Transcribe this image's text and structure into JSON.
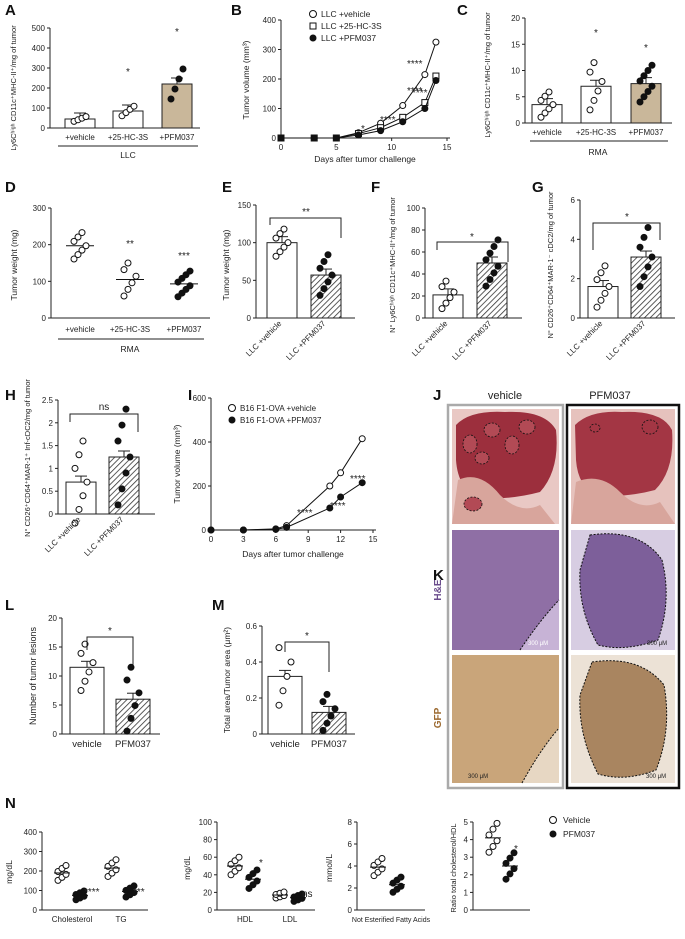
{
  "panels": {
    "A": {
      "letter": "A",
      "ylabel": "Ly6Cʰⁱᵍʰ CD11c⁺MHC-II⁺/mg of tumor",
      "group": "LLC",
      "categories": [
        "+vehicle",
        "+25-HC-3S",
        "+PFM037"
      ],
      "means": [
        45,
        85,
        220
      ],
      "stars": [
        "",
        "*",
        "*"
      ]
    },
    "B": {
      "letter": "B",
      "ylabel": "Tumor volume (mm³)",
      "xlabel": "Days after tumor challenge",
      "legend": [
        "LLC +vehicle",
        "LLC +25-HC-3S",
        "LLC +PFM037"
      ],
      "stars": [
        "****",
        "****",
        "****",
        "****",
        "*"
      ]
    },
    "C": {
      "letter": "C",
      "ylabel": "Ly6Cʰⁱᵍʰ CD11c⁺MHC-II⁺/mg of tumor",
      "group": "RMA",
      "categories": [
        "+vehicle",
        "+25-HC-3S",
        "+PFM037"
      ],
      "stars": [
        "",
        "*",
        "*"
      ]
    },
    "D": {
      "letter": "D",
      "ylabel": "Tumor weight (mg)",
      "group": "RMA",
      "categories": [
        "+vehicle",
        "+25-HC-3S",
        "+PFM037"
      ],
      "stars": [
        "",
        "**",
        "***"
      ]
    },
    "E": {
      "letter": "E",
      "ylabel": "Tumor weight (mg)",
      "categories": [
        "LLC +vehicle",
        "LLC +PFM037"
      ],
      "star": "**"
    },
    "F": {
      "letter": "F",
      "ylabel": "N° Ly6Cʰⁱᵍʰ CD11c⁺MHC-II⁺/mg of tumor",
      "categories": [
        "LLC +vehicle",
        "LLC +PFM037"
      ],
      "star": "*"
    },
    "G": {
      "letter": "G",
      "ylabel": "N° CD26⁺CD64⁺MAR-1⁻ cDC2/mg of tumor",
      "categories": [
        "LLC +vehicle",
        "LLC +PFM037"
      ],
      "star": "*"
    },
    "H": {
      "letter": "H",
      "ylabel": "N° CD26⁺CD64⁺MAR-1⁺ Inf-cDC2/mg of tumor",
      "categories": [
        "LLC +vehicle",
        "LLC +PFM037"
      ],
      "star": "ns"
    },
    "I": {
      "letter": "I",
      "ylabel": "Tumor volume (mm³)",
      "xlabel": "Days after tumor challenge",
      "legend": [
        "B16 F1-OVA +vehicle",
        "B16 F1-OVA +PFM037"
      ],
      "stars": [
        "****",
        "****",
        "****"
      ]
    },
    "J": {
      "letter": "J",
      "col1": "vehicle",
      "col2": "PFM037"
    },
    "K": {
      "letter": "K",
      "row1": "H&E",
      "row2": "GFP",
      "scale": "300 μM"
    },
    "L": {
      "letter": "L",
      "ylabel": "Number of tumor lesions",
      "categories": [
        "vehicle",
        "PFM037"
      ],
      "star": "*"
    },
    "M": {
      "letter": "M",
      "ylabel": "Total area/Tumor area (μm²)",
      "categories": [
        "vehicle",
        "PFM037"
      ],
      "star": "*"
    },
    "N": {
      "letter": "N",
      "ylabel1": "mg/dL",
      "ylabel2": "mg/dL",
      "ylabel3": "mmol/L",
      "ylabel4": "Ratio total cholesterol/HDL",
      "cats1": [
        "Cholesterol",
        "TG"
      ],
      "cats2": [
        "HDL",
        "LDL"
      ],
      "cats3": [
        "Not Esterified Fatty Acids"
      ],
      "stars1": [
        "****",
        "***"
      ],
      "stars2": [
        "*",
        "ns"
      ],
      "stars3": [
        "*"
      ],
      "stars4": [
        "*"
      ],
      "legend": [
        "Vehicle",
        "PFM037"
      ]
    }
  },
  "chart_data": [
    {
      "type": "bar",
      "panel": "A",
      "categories": [
        "+vehicle",
        "+25-HC-3S",
        "+PFM037"
      ],
      "values": [
        45,
        85,
        220
      ],
      "ylim": [
        0,
        500
      ],
      "yticks": [
        0,
        100,
        200,
        300,
        400,
        500
      ],
      "xlabel": "LLC"
    },
    {
      "type": "line",
      "panel": "B",
      "x": [
        0,
        3,
        5,
        7,
        9,
        11,
        13,
        14
      ],
      "series": [
        {
          "name": "LLC +vehicle",
          "values": [
            0,
            0,
            0,
            18,
            50,
            110,
            215,
            325
          ]
        },
        {
          "name": "LLC +25-HC-3S",
          "values": [
            0,
            0,
            0,
            15,
            35,
            70,
            120,
            210
          ]
        },
        {
          "name": "LLC +PFM037",
          "values": [
            0,
            0,
            0,
            10,
            25,
            55,
            100,
            195
          ]
        }
      ],
      "xlim": [
        0,
        15
      ],
      "ylim": [
        0,
        400
      ],
      "yticks": [
        0,
        100,
        200,
        300,
        400
      ],
      "xticks": [
        0,
        5,
        10,
        15
      ]
    },
    {
      "type": "bar",
      "panel": "C",
      "categories": [
        "+vehicle",
        "+25-HC-3S",
        "+PFM037"
      ],
      "values": [
        3.5,
        7,
        7.5
      ],
      "ylim": [
        0,
        20
      ],
      "yticks": [
        0,
        5,
        10,
        15,
        20
      ]
    },
    {
      "type": "scatter",
      "panel": "D",
      "categories": [
        "+vehicle",
        "+25-HC-3S",
        "+PFM037"
      ],
      "values": [
        197,
        105,
        93
      ],
      "ylim": [
        0,
        300
      ],
      "yticks": [
        0,
        100,
        200,
        300
      ]
    },
    {
      "type": "bar",
      "panel": "E",
      "categories": [
        "LLC +vehicle",
        "LLC +PFM037"
      ],
      "values": [
        100,
        57
      ],
      "ylim": [
        0,
        150
      ],
      "yticks": [
        0,
        50,
        100,
        150
      ]
    },
    {
      "type": "bar",
      "panel": "F",
      "categories": [
        "LLC +vehicle",
        "LLC +PFM037"
      ],
      "values": [
        21,
        50
      ],
      "ylim": [
        0,
        100
      ],
      "yticks": [
        0,
        20,
        40,
        60,
        80,
        100
      ]
    },
    {
      "type": "bar",
      "panel": "G",
      "categories": [
        "LLC +vehicle",
        "LLC +PFM037"
      ],
      "values": [
        1.6,
        3.1
      ],
      "ylim": [
        0,
        6
      ],
      "yticks": [
        0,
        2,
        4,
        6
      ]
    },
    {
      "type": "bar",
      "panel": "H",
      "categories": [
        "LLC +vehicle",
        "LLC +PFM037"
      ],
      "values": [
        0.7,
        1.25
      ],
      "ylim": [
        0,
        2.5
      ],
      "yticks": [
        0.0,
        0.5,
        1.0,
        1.5,
        2.0,
        2.5
      ]
    },
    {
      "type": "line",
      "panel": "I",
      "x": [
        0,
        3,
        6,
        7,
        11,
        12,
        14
      ],
      "series": [
        {
          "name": "B16 F1-OVA +vehicle",
          "values": [
            0,
            0,
            5,
            20,
            200,
            260,
            415
          ]
        },
        {
          "name": "B16 F1-OVA +PFM037",
          "values": [
            0,
            0,
            3,
            12,
            100,
            150,
            215
          ]
        }
      ],
      "xlim": [
        0,
        15
      ],
      "ylim": [
        0,
        600
      ],
      "yticks": [
        0,
        200,
        400,
        600
      ],
      "xticks": [
        0,
        3,
        6,
        9,
        12,
        15
      ]
    },
    {
      "type": "bar",
      "panel": "L",
      "categories": [
        "vehicle",
        "PFM037"
      ],
      "values": [
        11.5,
        6
      ],
      "ylim": [
        0,
        20
      ],
      "yticks": [
        0,
        5,
        10,
        15,
        20
      ]
    },
    {
      "type": "bar",
      "panel": "M",
      "categories": [
        "vehicle",
        "PFM037"
      ],
      "values": [
        0.32,
        0.12
      ],
      "ylim": [
        0,
        0.6
      ],
      "yticks": [
        0.0,
        0.2,
        0.4,
        0.6
      ]
    },
    {
      "type": "scatter",
      "panel": "N1",
      "categories": [
        "Cholesterol",
        "TG"
      ],
      "values": [
        [
          190,
          75
        ],
        [
          215,
          95
        ]
      ],
      "ylim": [
        0,
        400
      ],
      "yticks": [
        0,
        100,
        200,
        300,
        400
      ]
    },
    {
      "type": "scatter",
      "panel": "N2",
      "categories": [
        "HDL",
        "LDL"
      ],
      "values": [
        [
          50,
          35
        ],
        [
          17,
          14
        ]
      ],
      "ylim": [
        0,
        100
      ],
      "yticks": [
        0,
        20,
        40,
        60,
        80,
        100
      ]
    },
    {
      "type": "scatter",
      "panel": "N3",
      "categories": [
        "Not Esterified Fatty Acids"
      ],
      "values": [
        [
          3.9,
          2.3
        ]
      ],
      "ylim": [
        0,
        8
      ],
      "yticks": [
        0,
        2,
        4,
        6,
        8
      ]
    },
    {
      "type": "scatter",
      "panel": "N4",
      "values": [
        [
          4.1,
          2.5
        ]
      ],
      "ylim": [
        0,
        5
      ],
      "yticks": [
        0,
        1,
        2,
        3,
        4,
        5
      ]
    }
  ]
}
